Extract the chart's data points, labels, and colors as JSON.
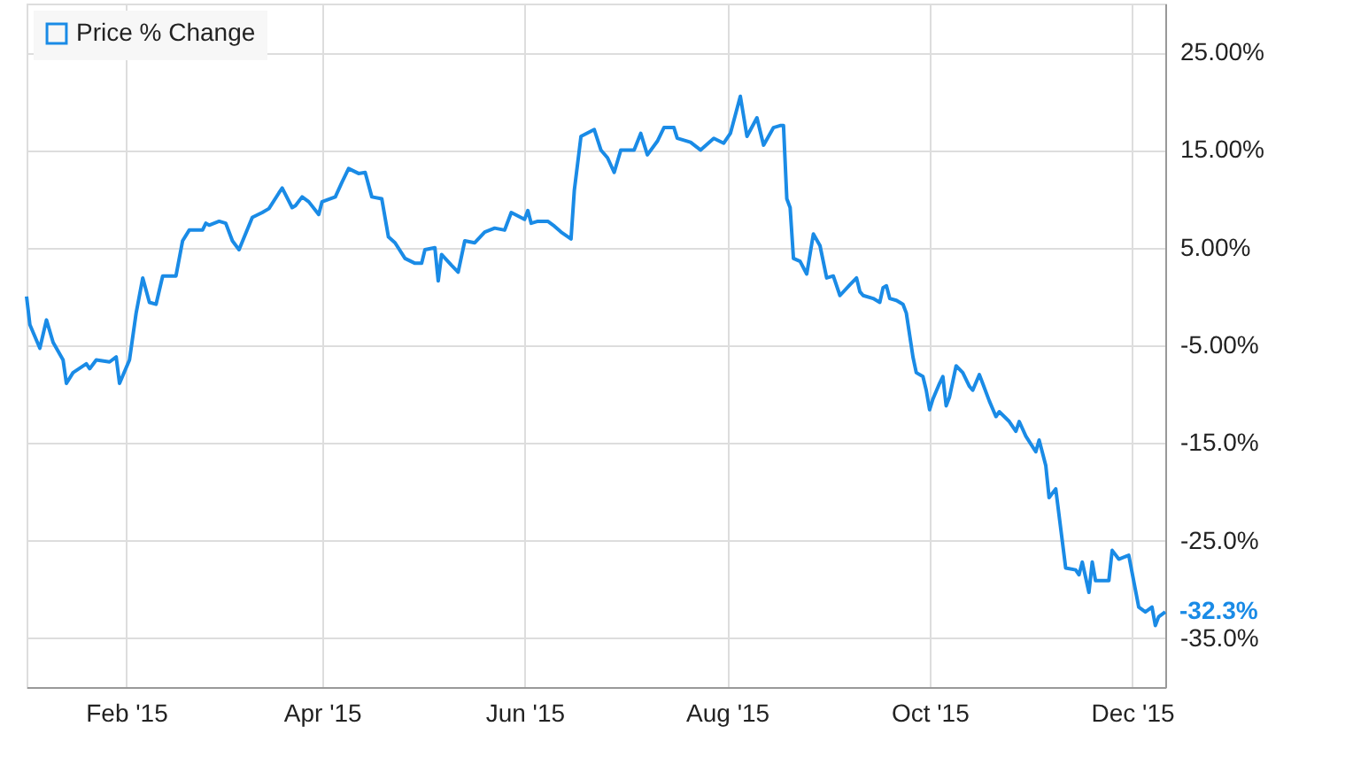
{
  "chart_data": {
    "type": "line",
    "x": [
      "2015-01-02",
      "2015-01-03",
      "2015-01-06",
      "2015-01-08",
      "2015-01-10",
      "2015-01-13",
      "2015-01-14",
      "2015-01-16",
      "2015-01-20",
      "2015-01-21",
      "2015-01-23",
      "2015-01-27",
      "2015-01-29",
      "2015-01-30",
      "2015-02-02",
      "2015-02-04",
      "2015-02-06",
      "2015-02-08",
      "2015-02-10",
      "2015-02-12",
      "2015-02-16",
      "2015-02-18",
      "2015-02-20",
      "2015-02-24",
      "2015-02-25",
      "2015-02-26",
      "2015-03-01",
      "2015-03-03",
      "2015-03-05",
      "2015-03-07",
      "2015-03-11",
      "2015-03-14",
      "2015-03-16",
      "2015-03-19",
      "2015-03-20",
      "2015-03-23",
      "2015-03-24",
      "2015-03-26",
      "2015-03-28",
      "2015-03-31",
      "2015-04-01",
      "2015-04-05",
      "2015-04-07",
      "2015-04-09",
      "2015-04-12",
      "2015-04-14",
      "2015-04-16",
      "2015-04-19",
      "2015-04-21",
      "2015-04-23",
      "2015-04-26",
      "2015-04-29",
      "2015-05-01",
      "2015-05-02",
      "2015-05-05",
      "2015-05-06",
      "2015-05-07",
      "2015-05-10",
      "2015-05-12",
      "2015-05-14",
      "2015-05-17",
      "2015-05-20",
      "2015-05-23",
      "2015-05-26",
      "2015-05-28",
      "2015-06-01",
      "2015-06-02",
      "2015-06-03",
      "2015-06-05",
      "2015-06-08",
      "2015-06-10",
      "2015-06-12",
      "2015-06-15",
      "2015-06-16",
      "2015-06-18",
      "2015-06-22",
      "2015-06-24",
      "2015-06-26",
      "2015-06-28",
      "2015-06-30",
      "2015-07-04",
      "2015-07-06",
      "2015-07-08",
      "2015-07-11",
      "2015-07-13",
      "2015-07-16",
      "2015-07-17",
      "2015-07-21",
      "2015-07-24",
      "2015-07-28",
      "2015-07-31",
      "2015-08-02",
      "2015-08-05",
      "2015-08-07",
      "2015-08-10",
      "2015-08-12",
      "2015-08-15",
      "2015-08-17",
      "2015-08-18",
      "2015-08-19",
      "2015-08-20",
      "2015-08-21",
      "2015-08-23",
      "2015-08-25",
      "2015-08-27",
      "2015-08-29",
      "2015-08-31",
      "2015-09-02",
      "2015-09-04",
      "2015-09-07",
      "2015-09-09",
      "2015-09-10",
      "2015-09-11",
      "2015-09-14",
      "2015-09-16",
      "2015-09-17",
      "2015-09-18",
      "2015-09-19",
      "2015-09-21",
      "2015-09-23",
      "2015-09-24",
      "2015-09-26",
      "2015-09-27",
      "2015-09-29",
      "2015-09-30",
      "2015-10-01",
      "2015-10-02",
      "2015-10-04",
      "2015-10-05",
      "2015-10-06",
      "2015-10-07",
      "2015-10-09",
      "2015-10-11",
      "2015-10-13",
      "2015-10-14",
      "2015-10-16",
      "2015-10-17",
      "2015-10-19",
      "2015-10-21",
      "2015-10-22",
      "2015-10-25",
      "2015-10-27",
      "2015-10-28",
      "2015-10-30",
      "2015-11-02",
      "2015-11-03",
      "2015-11-05",
      "2015-11-06",
      "2015-11-08",
      "2015-11-11",
      "2015-11-14",
      "2015-11-15",
      "2015-11-16",
      "2015-11-18",
      "2015-11-19",
      "2015-11-20",
      "2015-11-24",
      "2015-11-25",
      "2015-11-27",
      "2015-11-30",
      "2015-12-03",
      "2015-12-05",
      "2015-12-07",
      "2015-12-08",
      "2015-12-09",
      "2015-12-11"
    ],
    "series": [
      {
        "name": "Price % Change",
        "color": "#1a8be6",
        "values": [
          0,
          -2.9,
          -5.3,
          -2.4,
          -4.7,
          -6.5,
          -8.9,
          -7.8,
          -6.9,
          -7.4,
          -6.5,
          -6.7,
          -6.2,
          -8.9,
          -6.5,
          -1.7,
          1.9,
          -0.6,
          -0.8,
          2.1,
          2.1,
          5.7,
          6.8,
          6.8,
          7.5,
          7.3,
          7.7,
          7.5,
          5.7,
          4.8,
          8.1,
          8.6,
          9.0,
          10.6,
          11.1,
          9.1,
          9.3,
          10.2,
          9.7,
          8.4,
          9.7,
          10.2,
          11.7,
          13.1,
          12.6,
          12.7,
          10.2,
          10.0,
          6.1,
          5.5,
          3.9,
          3.4,
          3.4,
          4.8,
          5.0,
          1.6,
          4.3,
          3.2,
          2.5,
          5.7,
          5.5,
          6.6,
          7.0,
          6.8,
          8.6,
          7.9,
          8.8,
          7.5,
          7.7,
          7.7,
          7.2,
          6.6,
          5.9,
          10.9,
          16.4,
          17.1,
          15.0,
          14.2,
          12.7,
          15.0,
          15.0,
          16.7,
          14.5,
          15.9,
          17.3,
          17.3,
          16.2,
          15.8,
          15.0,
          16.2,
          15.7,
          16.7,
          20.5,
          16.4,
          18.3,
          15.5,
          17.3,
          17.5,
          17.5,
          10.0,
          9.1,
          3.9,
          3.6,
          2.3,
          6.4,
          5.2,
          1.9,
          2.1,
          0.1,
          1.2,
          1.9,
          0.5,
          0.1,
          -0.2,
          -0.6,
          0.9,
          1.1,
          -0.2,
          -0.4,
          -0.8,
          -1.7,
          -6.2,
          -7.8,
          -8.2,
          -9.6,
          -11.6,
          -10.5,
          -8.9,
          -8.2,
          -11.2,
          -10.3,
          -7.1,
          -7.8,
          -9.2,
          -9.6,
          -8.0,
          -8.9,
          -10.7,
          -12.3,
          -11.8,
          -12.8,
          -13.8,
          -12.8,
          -14.3,
          -15.9,
          -14.7,
          -17.3,
          -20.6,
          -19.7,
          -27.8,
          -28.0,
          -28.5,
          -27.2,
          -30.3,
          -27.2,
          -29.1,
          -29.1,
          -26.0,
          -26.9,
          -26.5,
          -31.8,
          -32.3,
          -31.8,
          -33.7,
          -32.8,
          -32.3
        ]
      }
    ],
    "xlim": [
      "2015-01-02",
      "2015-12-11"
    ],
    "xticks": [
      {
        "value": "2015-02-01",
        "label": "Feb '15"
      },
      {
        "value": "2015-04-01",
        "label": "Apr '15"
      },
      {
        "value": "2015-06-01",
        "label": "Jun '15"
      },
      {
        "value": "2015-08-01",
        "label": "Aug '15"
      },
      {
        "value": "2015-10-01",
        "label": "Oct '15"
      },
      {
        "value": "2015-12-01",
        "label": "Dec '15"
      }
    ],
    "ylim": [
      -40,
      30
    ],
    "yticks": [
      {
        "value": 25,
        "label": "25.00%"
      },
      {
        "value": 15,
        "label": "15.00%"
      },
      {
        "value": 5,
        "label": "5.00%"
      },
      {
        "value": -5,
        "label": "-5.00%"
      },
      {
        "value": -15,
        "label": "-15.0%"
      },
      {
        "value": -25,
        "label": "-25.0%"
      },
      {
        "value": -35,
        "label": "-35.0%"
      }
    ],
    "annotations": [
      {
        "text": "-32.3%",
        "x": "2015-12-11",
        "y": -32.3
      }
    ],
    "grid": true,
    "legend": "top left",
    "marker": "none",
    "line_style": "solid"
  }
}
